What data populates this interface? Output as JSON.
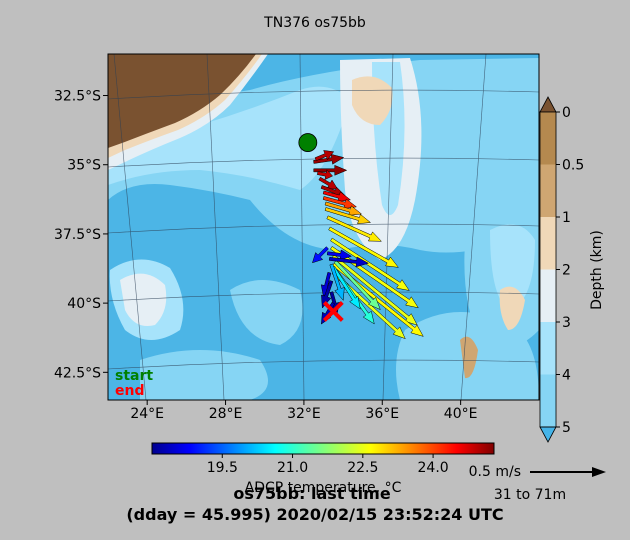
{
  "title": "TN376 os75bb",
  "footer": {
    "line1": "os75bb: last time",
    "line2": "(dday = 45.995) 2020/02/15 23:52:24 UTC"
  },
  "legend": {
    "start": "start",
    "end": "end",
    "start_color": "#008000",
    "end_color": "#ff0000"
  },
  "depth_colorbar": {
    "label": "Depth (km)",
    "ticks": [
      "0",
      "0.5",
      "1",
      "2",
      "3",
      "4",
      "5"
    ],
    "colors": [
      "#b5894f",
      "#cfa672",
      "#f0d8b8",
      "#e6eff5",
      "#a7e3fb",
      "#86d5f4",
      "#45b4e8"
    ]
  },
  "temp_colorbar": {
    "label": "ADCP temperature, °C",
    "ticks": [
      "19.5",
      "21.0",
      "22.5",
      "24.0"
    ],
    "tick_values": [
      19.5,
      21.0,
      22.5,
      24.0
    ],
    "range": [
      18.0,
      25.3
    ]
  },
  "scale": {
    "speed": "0.5 m/s",
    "depth": "31 to 71m",
    "speed_value": 0.5
  },
  "chart_data": {
    "type": "scatter",
    "title": "TN376 os75bb",
    "x_ticks": [
      "24°E",
      "28°E",
      "32°E",
      "36°E",
      "40°E"
    ],
    "x_tick_values": [
      24,
      28,
      32,
      36,
      40
    ],
    "y_ticks": [
      "32.5°S",
      "35°S",
      "37.5°S",
      "40°S",
      "42.5°S"
    ],
    "y_tick_values": [
      -32.5,
      -35,
      -37.5,
      -40,
      -42.5
    ],
    "xlim": [
      22,
      44
    ],
    "ylim": [
      -43.5,
      -31
    ],
    "start": {
      "lon": 32.2,
      "lat": -34.2
    },
    "end": {
      "lon": 33.5,
      "lat": -40.3
    },
    "vectors": [
      {
        "lon": 32.5,
        "lat": -34.9,
        "u": 1.0,
        "v": 0.15,
        "t": 25.1
      },
      {
        "lon": 32.6,
        "lat": -34.8,
        "u": 0.6,
        "v": 0.25,
        "t": 24.9
      },
      {
        "lon": 32.5,
        "lat": -35.2,
        "u": 1.1,
        "v": 0.0,
        "t": 25.2
      },
      {
        "lon": 32.7,
        "lat": -35.3,
        "u": 0.5,
        "v": -0.1,
        "t": 24.8
      },
      {
        "lon": 32.8,
        "lat": -35.5,
        "u": 0.6,
        "v": -0.35,
        "t": 24.9
      },
      {
        "lon": 32.9,
        "lat": -35.8,
        "u": 0.8,
        "v": -0.3,
        "t": 25.0
      },
      {
        "lon": 33.0,
        "lat": -36.0,
        "u": 0.9,
        "v": -0.25,
        "t": 24.5
      },
      {
        "lon": 33.0,
        "lat": -36.2,
        "u": 1.1,
        "v": -0.3,
        "t": 24.0
      },
      {
        "lon": 33.1,
        "lat": -36.4,
        "u": 1.2,
        "v": -0.35,
        "t": 23.2
      },
      {
        "lon": 33.1,
        "lat": -36.6,
        "u": 1.5,
        "v": -0.45,
        "t": 22.9
      },
      {
        "lon": 33.2,
        "lat": -36.9,
        "u": 1.8,
        "v": -0.8,
        "t": 22.7
      },
      {
        "lon": 33.3,
        "lat": -37.3,
        "u": 2.3,
        "v": -1.3,
        "t": 22.6
      },
      {
        "lon": 33.4,
        "lat": -37.7,
        "u": 2.6,
        "v": -1.7,
        "t": 22.5
      },
      {
        "lon": 33.4,
        "lat": -38.0,
        "u": 2.9,
        "v": -2.0,
        "t": 22.5
      },
      {
        "lon": 33.5,
        "lat": -38.3,
        "u": 2.8,
        "v": -2.3,
        "t": 22.4
      },
      {
        "lon": 33.5,
        "lat": -38.6,
        "u": 3.0,
        "v": -2.4,
        "t": 22.6
      },
      {
        "lon": 33.5,
        "lat": -38.9,
        "u": 2.4,
        "v": -2.2,
        "t": 22.4
      },
      {
        "lon": 33.6,
        "lat": -38.5,
        "u": 1.5,
        "v": -1.6,
        "t": 21.5
      },
      {
        "lon": 33.6,
        "lat": -38.8,
        "u": 1.3,
        "v": -1.8,
        "t": 21.0
      },
      {
        "lon": 33.5,
        "lat": -38.7,
        "u": 0.9,
        "v": -1.4,
        "t": 20.6
      },
      {
        "lon": 33.4,
        "lat": -38.6,
        "u": 0.4,
        "v": -1.2,
        "t": 20.2
      },
      {
        "lon": 33.2,
        "lat": -38.0,
        "u": -0.5,
        "v": -0.5,
        "t": 19.0
      },
      {
        "lon": 33.2,
        "lat": -38.2,
        "u": 0.8,
        "v": -0.1,
        "t": 18.8
      },
      {
        "lon": 33.3,
        "lat": -38.4,
        "u": 1.3,
        "v": -0.15,
        "t": 18.5
      },
      {
        "lon": 33.3,
        "lat": -38.9,
        "u": -0.2,
        "v": -0.8,
        "t": 18.6
      },
      {
        "lon": 33.4,
        "lat": -39.2,
        "u": -0.3,
        "v": -0.9,
        "t": 18.3
      },
      {
        "lon": 33.4,
        "lat": -39.6,
        "u": 0.2,
        "v": -0.7,
        "t": 18.2
      },
      {
        "lon": 33.5,
        "lat": -40.0,
        "u": -0.4,
        "v": -0.7,
        "t": 18.4
      }
    ]
  }
}
